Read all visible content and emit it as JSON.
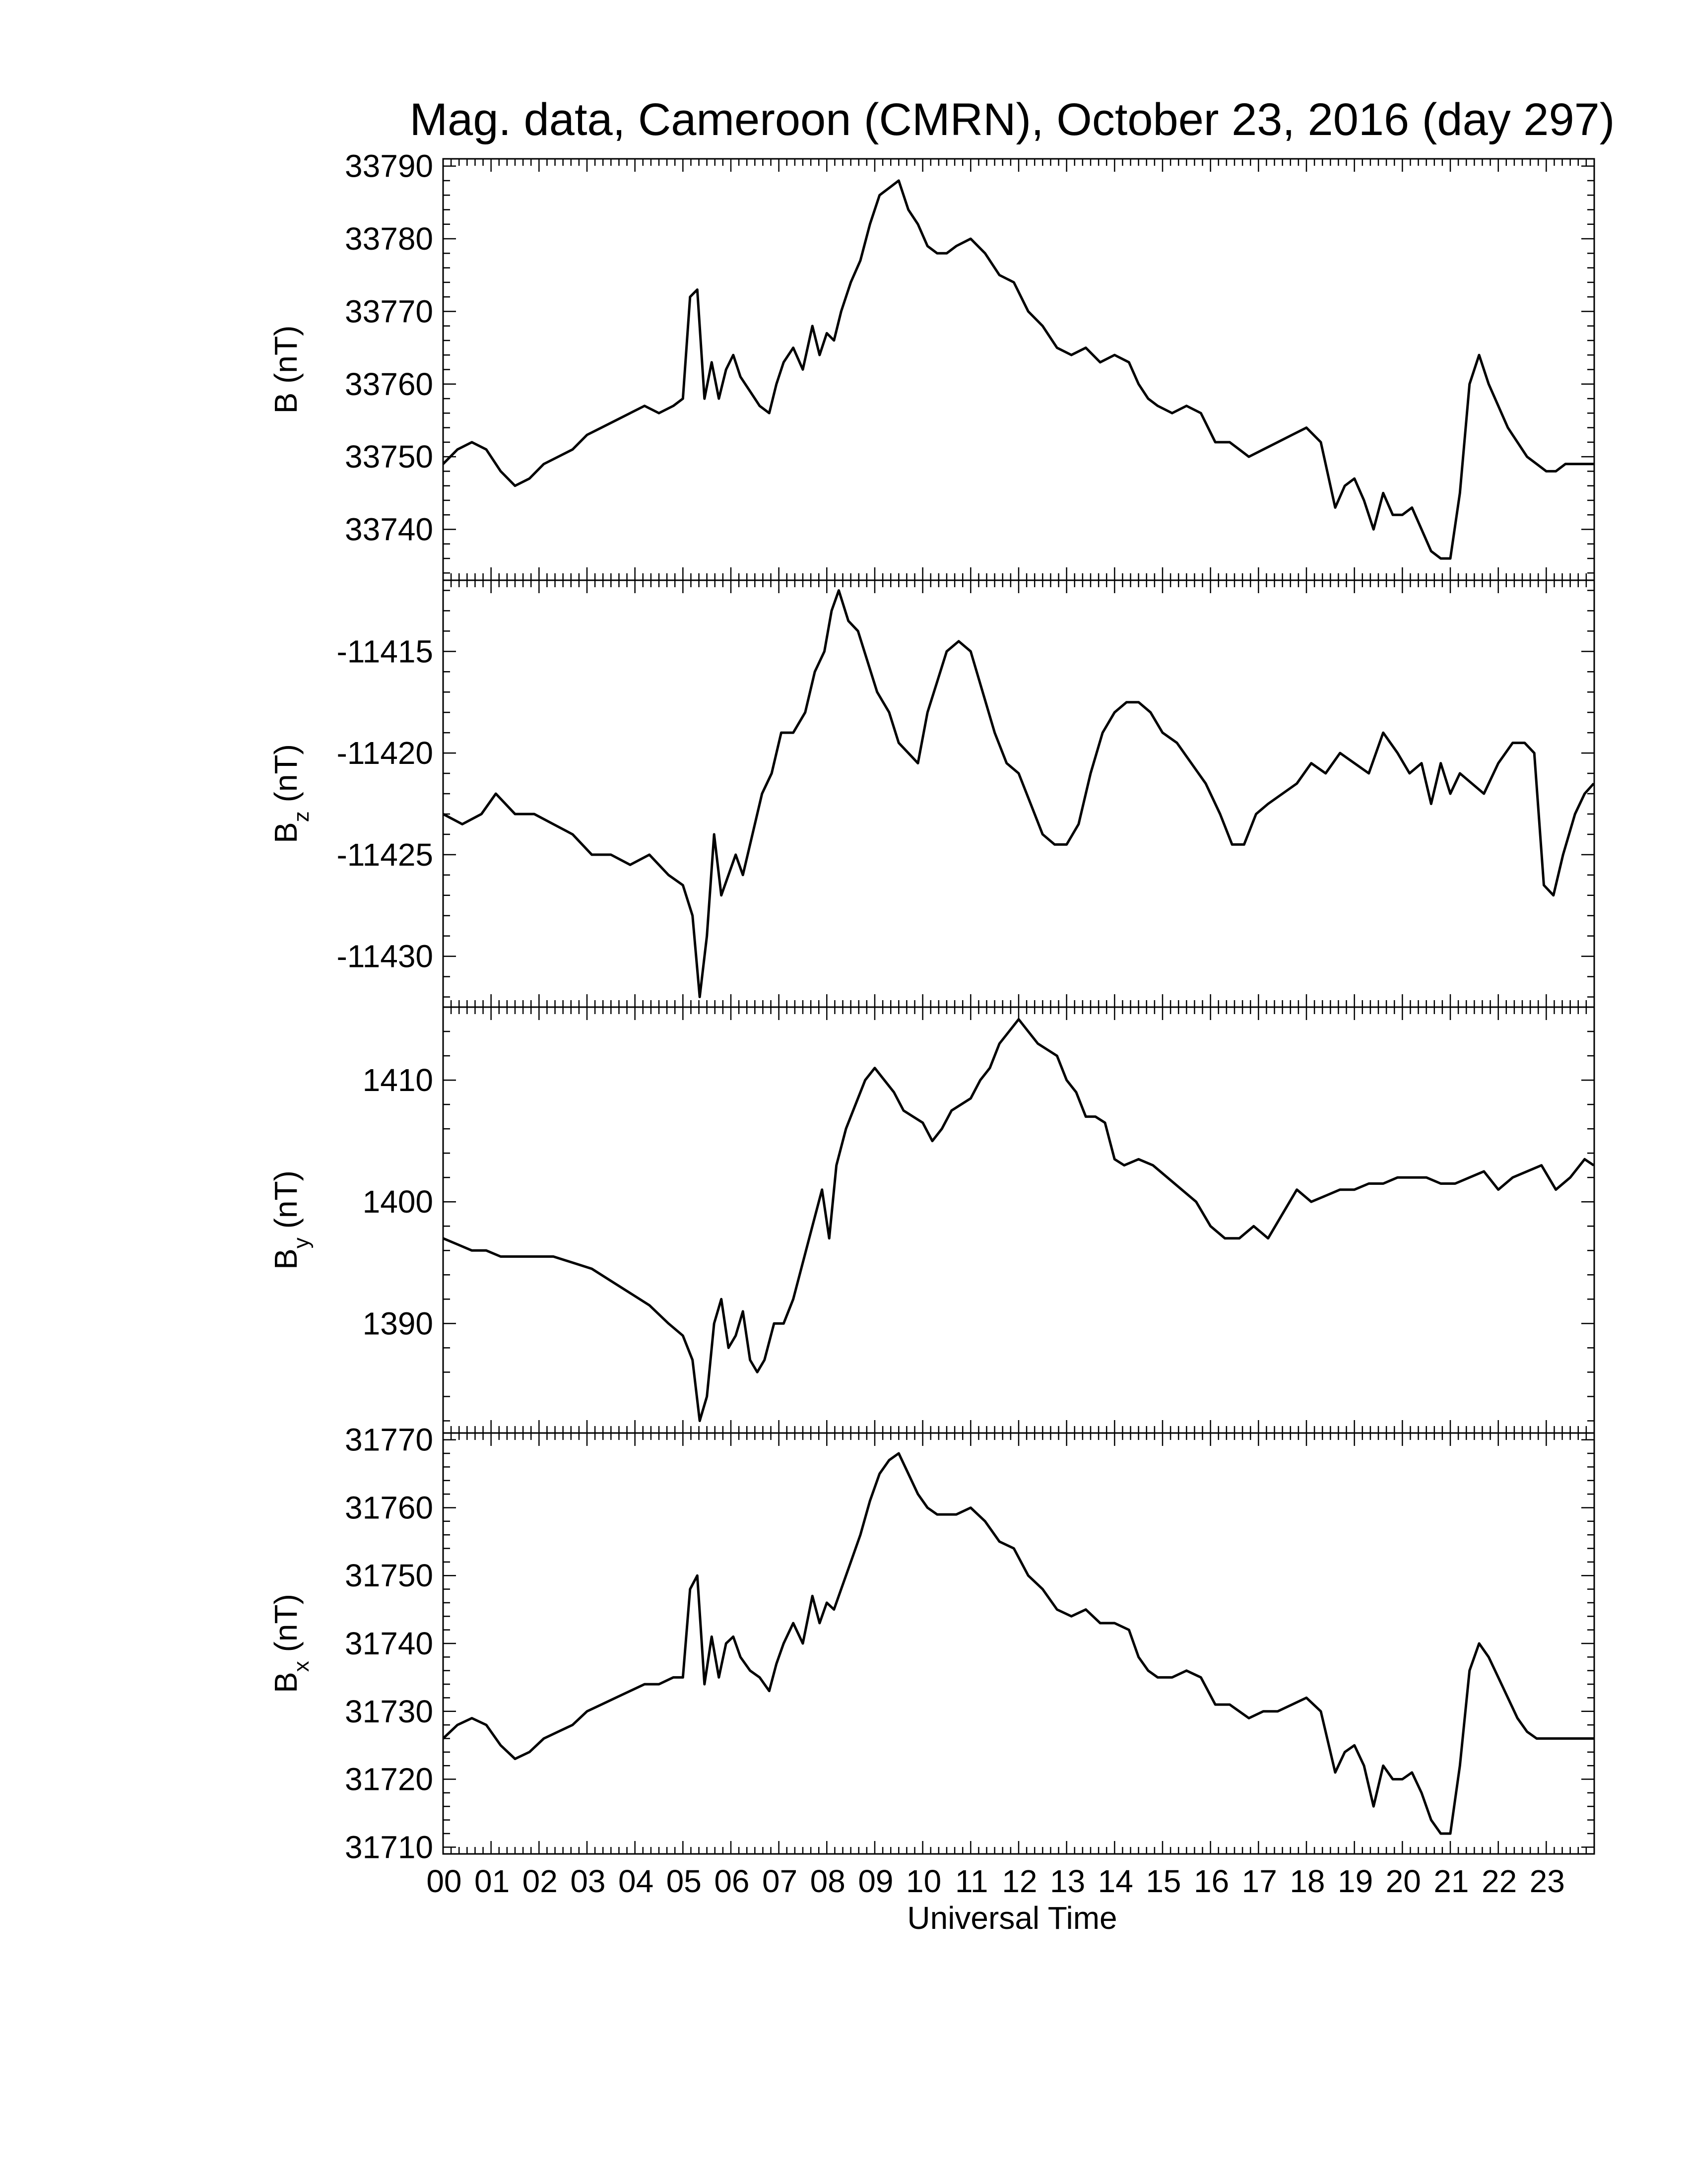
{
  "title": "Mag. data, Cameroon (CMRN), October 23, 2016 (day 297)",
  "chart_data": [
    {
      "type": "line",
      "ylabel": "B (nT)",
      "ylim": [
        33733,
        33791
      ],
      "yticks": [
        33740,
        33750,
        33760,
        33770,
        33780,
        33790
      ],
      "series": [
        {
          "x": [
            0,
            0.3,
            0.6,
            0.9,
            1.2,
            1.5,
            1.8,
            2.1,
            2.4,
            2.7,
            3.0,
            3.3,
            3.6,
            3.9,
            4.2,
            4.5,
            4.8,
            5.0,
            5.15,
            5.3,
            5.45,
            5.6,
            5.75,
            5.9,
            6.05,
            6.2,
            6.4,
            6.6,
            6.8,
            6.95,
            7.1,
            7.3,
            7.5,
            7.7,
            7.85,
            8.0,
            8.15,
            8.3,
            8.5,
            8.7,
            8.9,
            9.1,
            9.3,
            9.5,
            9.7,
            9.9,
            10.1,
            10.3,
            10.5,
            10.7,
            11.0,
            11.3,
            11.6,
            11.9,
            12.2,
            12.5,
            12.8,
            13.1,
            13.4,
            13.7,
            14.0,
            14.3,
            14.5,
            14.7,
            14.9,
            15.2,
            15.5,
            15.8,
            16.1,
            16.4,
            16.6,
            16.8,
            17.1,
            17.4,
            17.7,
            18.0,
            18.3,
            18.6,
            18.8,
            19.0,
            19.2,
            19.4,
            19.6,
            19.8,
            20.0,
            20.2,
            20.4,
            20.6,
            20.8,
            21.0,
            21.2,
            21.4,
            21.6,
            21.8,
            22.0,
            22.2,
            22.4,
            22.6,
            22.8,
            23.0,
            23.2,
            23.4,
            23.6,
            23.99
          ],
          "y": [
            33749,
            33751,
            33752,
            33751,
            33748,
            33746,
            33747,
            33749,
            33750,
            33751,
            33753,
            33754,
            33755,
            33756,
            33757,
            33756,
            33757,
            33758,
            33772,
            33773,
            33758,
            33763,
            33758,
            33762,
            33764,
            33761,
            33759,
            33757,
            33756,
            33760,
            33763,
            33765,
            33762,
            33768,
            33764,
            33767,
            33766,
            33770,
            33774,
            33777,
            33782,
            33786,
            33787,
            33788,
            33784,
            33782,
            33779,
            33778,
            33778,
            33779,
            33780,
            33778,
            33775,
            33774,
            33770,
            33768,
            33765,
            33764,
            33765,
            33763,
            33764,
            33763,
            33760,
            33758,
            33757,
            33756,
            33757,
            33756,
            33752,
            33752,
            33751,
            33750,
            33751,
            33752,
            33753,
            33754,
            33752,
            33743,
            33746,
            33747,
            33744,
            33740,
            33745,
            33742,
            33742,
            33743,
            33740,
            33737,
            33736,
            33736,
            33745,
            33760,
            33764,
            33760,
            33757,
            33754,
            33752,
            33750,
            33749,
            33748,
            33748,
            33749,
            33749,
            33749
          ]
        }
      ]
    },
    {
      "type": "line",
      "ylabel": "Bz (nT)",
      "ylim": [
        -11432.5,
        -11411.5
      ],
      "yticks": [
        -11415,
        -11420,
        -11425,
        -11430
      ],
      "series": [
        {
          "x": [
            0,
            0.4,
            0.8,
            1.1,
            1.5,
            1.9,
            2.3,
            2.7,
            3.1,
            3.5,
            3.9,
            4.3,
            4.7,
            5.0,
            5.2,
            5.35,
            5.5,
            5.65,
            5.8,
            5.95,
            6.1,
            6.25,
            6.45,
            6.65,
            6.85,
            7.05,
            7.3,
            7.55,
            7.75,
            7.95,
            8.1,
            8.25,
            8.45,
            8.65,
            8.85,
            9.05,
            9.3,
            9.5,
            9.7,
            9.9,
            10.1,
            10.3,
            10.5,
            10.75,
            11.0,
            11.25,
            11.5,
            11.75,
            12.0,
            12.25,
            12.5,
            12.75,
            13.0,
            13.25,
            13.5,
            13.75,
            14.0,
            14.25,
            14.5,
            14.75,
            15.0,
            15.3,
            15.6,
            15.9,
            16.2,
            16.45,
            16.7,
            16.95,
            17.2,
            17.5,
            17.8,
            18.1,
            18.4,
            18.7,
            19.0,
            19.3,
            19.6,
            19.9,
            20.15,
            20.4,
            20.6,
            20.8,
            21.0,
            21.2,
            21.45,
            21.7,
            22.0,
            22.3,
            22.55,
            22.75,
            22.95,
            23.15,
            23.35,
            23.6,
            23.8,
            23.99
          ],
          "y": [
            -11423,
            -11423.5,
            -11423,
            -11422,
            -11423,
            -11423,
            -11423.5,
            -11424,
            -11425,
            -11425,
            -11425.5,
            -11425,
            -11426,
            -11426.5,
            -11428,
            -11432,
            -11429,
            -11424,
            -11427,
            -11426,
            -11425,
            -11426,
            -11424,
            -11422,
            -11421,
            -11419,
            -11419,
            -11418,
            -11416,
            -11415,
            -11413,
            -11412,
            -11413.5,
            -11414,
            -11415.5,
            -11417,
            -11418,
            -11419.5,
            -11420,
            -11420.5,
            -11418,
            -11416.5,
            -11415,
            -11414.5,
            -11415,
            -11417,
            -11419,
            -11420.5,
            -11421,
            -11422.5,
            -11424,
            -11424.5,
            -11424.5,
            -11423.5,
            -11421,
            -11419,
            -11418,
            -11417.5,
            -11417.5,
            -11418,
            -11419,
            -11419.5,
            -11420.5,
            -11421.5,
            -11423,
            -11424.5,
            -11424.5,
            -11423,
            -11422.5,
            -11422,
            -11421.5,
            -11420.5,
            -11421,
            -11420,
            -11420.5,
            -11421,
            -11419,
            -11420,
            -11421,
            -11420.5,
            -11422.5,
            -11420.5,
            -11422,
            -11421,
            -11421.5,
            -11422,
            -11420.5,
            -11419.5,
            -11419.5,
            -11420,
            -11426.5,
            -11427,
            -11425,
            -11423,
            -11422,
            -11421.5
          ]
        }
      ]
    },
    {
      "type": "line",
      "ylabel": "By (nT)",
      "ylim": [
        1381,
        1416
      ],
      "yticks": [
        1390,
        1400,
        1410
      ],
      "series": [
        {
          "x": [
            0,
            0.3,
            0.6,
            0.9,
            1.2,
            1.5,
            1.9,
            2.3,
            2.7,
            3.1,
            3.5,
            3.9,
            4.3,
            4.7,
            5.0,
            5.2,
            5.35,
            5.5,
            5.65,
            5.8,
            5.95,
            6.1,
            6.25,
            6.4,
            6.55,
            6.7,
            6.9,
            7.1,
            7.3,
            7.5,
            7.7,
            7.9,
            8.05,
            8.2,
            8.4,
            8.6,
            8.8,
            9.0,
            9.2,
            9.4,
            9.6,
            9.8,
            10.0,
            10.2,
            10.4,
            10.6,
            10.8,
            11.0,
            11.2,
            11.4,
            11.6,
            11.8,
            12.0,
            12.2,
            12.4,
            12.6,
            12.8,
            13.0,
            13.2,
            13.4,
            13.6,
            13.8,
            14.0,
            14.2,
            14.5,
            14.8,
            15.1,
            15.4,
            15.7,
            16.0,
            16.3,
            16.6,
            16.9,
            17.2,
            17.5,
            17.8,
            18.1,
            18.4,
            18.7,
            19.0,
            19.3,
            19.6,
            19.9,
            20.2,
            20.5,
            20.8,
            21.1,
            21.4,
            21.7,
            22.0,
            22.3,
            22.6,
            22.9,
            23.2,
            23.5,
            23.8,
            23.99
          ],
          "y": [
            1397,
            1396.5,
            1396,
            1396,
            1395.5,
            1395.5,
            1395.5,
            1395.5,
            1395,
            1394.5,
            1393.5,
            1392.5,
            1391.5,
            1390,
            1389,
            1387,
            1382,
            1384,
            1390,
            1392,
            1388,
            1389,
            1391,
            1387,
            1386,
            1387,
            1390,
            1390,
            1392,
            1395,
            1398,
            1401,
            1397,
            1403,
            1406,
            1408,
            1410,
            1411,
            1410,
            1409,
            1407.5,
            1407,
            1406.5,
            1405,
            1406,
            1407.5,
            1408,
            1408.5,
            1410,
            1411,
            1413,
            1414,
            1415,
            1414,
            1413,
            1412.5,
            1412,
            1410,
            1409,
            1407,
            1407,
            1406.5,
            1403.5,
            1403,
            1403.5,
            1403,
            1402,
            1401,
            1400,
            1398,
            1397,
            1397,
            1398,
            1397,
            1399,
            1401,
            1400,
            1400.5,
            1401,
            1401,
            1401.5,
            1401.5,
            1402,
            1402,
            1402,
            1401.5,
            1401.5,
            1402,
            1402.5,
            1401,
            1402,
            1402.5,
            1403,
            1401,
            1402,
            1403.5,
            1403
          ]
        }
      ]
    },
    {
      "type": "line",
      "ylabel": "Bx (nT)",
      "ylim": [
        31709,
        31771
      ],
      "yticks": [
        31710,
        31720,
        31730,
        31740,
        31750,
        31760,
        31770
      ],
      "series": [
        {
          "x": [
            0,
            0.3,
            0.6,
            0.9,
            1.2,
            1.5,
            1.8,
            2.1,
            2.4,
            2.7,
            3.0,
            3.3,
            3.6,
            3.9,
            4.2,
            4.5,
            4.8,
            5.0,
            5.15,
            5.3,
            5.45,
            5.6,
            5.75,
            5.9,
            6.05,
            6.2,
            6.4,
            6.6,
            6.8,
            6.95,
            7.1,
            7.3,
            7.5,
            7.7,
            7.85,
            8.0,
            8.15,
            8.3,
            8.5,
            8.7,
            8.9,
            9.1,
            9.3,
            9.5,
            9.7,
            9.9,
            10.1,
            10.3,
            10.5,
            10.7,
            11.0,
            11.3,
            11.6,
            11.9,
            12.2,
            12.5,
            12.8,
            13.1,
            13.4,
            13.7,
            14.0,
            14.3,
            14.5,
            14.7,
            14.9,
            15.2,
            15.5,
            15.8,
            16.1,
            16.4,
            16.6,
            16.8,
            17.1,
            17.4,
            17.7,
            18.0,
            18.3,
            18.6,
            18.8,
            19.0,
            19.2,
            19.4,
            19.6,
            19.8,
            20.0,
            20.2,
            20.4,
            20.6,
            20.8,
            21.0,
            21.2,
            21.4,
            21.6,
            21.8,
            22.0,
            22.2,
            22.4,
            22.6,
            22.8,
            23.0,
            23.2,
            23.4,
            23.6,
            23.99
          ],
          "y": [
            31726,
            31728,
            31729,
            31728,
            31725,
            31723,
            31724,
            31726,
            31727,
            31728,
            31730,
            31731,
            31732,
            31733,
            31734,
            31734,
            31735,
            31735,
            31748,
            31750,
            31734,
            31741,
            31735,
            31740,
            31741,
            31738,
            31736,
            31735,
            31733,
            31737,
            31740,
            31743,
            31740,
            31747,
            31743,
            31746,
            31745,
            31748,
            31752,
            31756,
            31761,
            31765,
            31767,
            31768,
            31765,
            31762,
            31760,
            31759,
            31759,
            31759,
            31760,
            31758,
            31755,
            31754,
            31750,
            31748,
            31745,
            31744,
            31745,
            31743,
            31743,
            31742,
            31738,
            31736,
            31735,
            31735,
            31736,
            31735,
            31731,
            31731,
            31730,
            31729,
            31730,
            31730,
            31731,
            31732,
            31730,
            31721,
            31724,
            31725,
            31722,
            31716,
            31722,
            31720,
            31720,
            31721,
            31718,
            31714,
            31712,
            31712,
            31722,
            31736,
            31740,
            31738,
            31735,
            31732,
            31729,
            31727,
            31726,
            31726,
            31726,
            31726,
            31726,
            31726
          ]
        }
      ]
    }
  ],
  "xaxis": {
    "title": "Universal Time",
    "xlim": [
      0,
      24
    ],
    "tick_labels": [
      "00",
      "01",
      "02",
      "03",
      "04",
      "05",
      "06",
      "07",
      "08",
      "09",
      "10",
      "11",
      "12",
      "13",
      "14",
      "15",
      "16",
      "17",
      "18",
      "19",
      "20",
      "21",
      "22",
      "23"
    ]
  },
  "colors": {
    "line": "#000000",
    "axes": "#000000",
    "background": "#ffffff"
  }
}
